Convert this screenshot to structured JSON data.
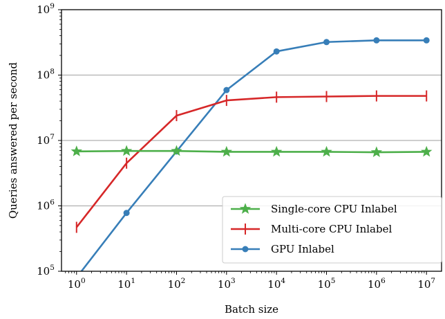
{
  "chart_data": {
    "type": "line",
    "xlabel": "Batch size",
    "ylabel": "Queries answered per second",
    "xscale": "log",
    "yscale": "log",
    "xlim": [
      0.5,
      20000000
    ],
    "ylim": [
      100000,
      1000000000
    ],
    "x_ticks": [
      {
        "base": "10",
        "exp": "0",
        "value": 1
      },
      {
        "base": "10",
        "exp": "1",
        "value": 10
      },
      {
        "base": "10",
        "exp": "2",
        "value": 100
      },
      {
        "base": "10",
        "exp": "3",
        "value": 1000
      },
      {
        "base": "10",
        "exp": "4",
        "value": 10000
      },
      {
        "base": "10",
        "exp": "5",
        "value": 100000
      },
      {
        "base": "10",
        "exp": "6",
        "value": 1000000
      },
      {
        "base": "10",
        "exp": "7",
        "value": 10000000
      }
    ],
    "y_ticks": [
      {
        "base": "10",
        "exp": "5",
        "value": 100000
      },
      {
        "base": "10",
        "exp": "6",
        "value": 1000000
      },
      {
        "base": "10",
        "exp": "7",
        "value": 10000000
      },
      {
        "base": "10",
        "exp": "8",
        "value": 100000000
      },
      {
        "base": "10",
        "exp": "9",
        "value": 1000000000
      }
    ],
    "grid": "horizontal major",
    "legend_position": "lower-right",
    "x": [
      1,
      10,
      100,
      1000,
      10000,
      100000,
      1000000,
      10000000
    ],
    "series": [
      {
        "name": "Single-core CPU Inlabel",
        "color": "#4daf4a",
        "marker": "star",
        "values": [
          6800000,
          6900000,
          6900000,
          6700000,
          6700000,
          6700000,
          6600000,
          6700000
        ]
      },
      {
        "name": "Multi-core CPU Inlabel",
        "color": "#d62728",
        "marker": "vline",
        "values": [
          470000,
          4500000,
          24000000,
          41000000,
          46000000,
          47000000,
          48000000,
          48000000
        ]
      },
      {
        "name": "GPU Inlabel",
        "color": "#377eb8",
        "marker": "circle",
        "values": [
          80000,
          780000,
          6800000,
          59000000,
          230000000,
          320000000,
          340000000,
          340000000
        ]
      }
    ]
  }
}
